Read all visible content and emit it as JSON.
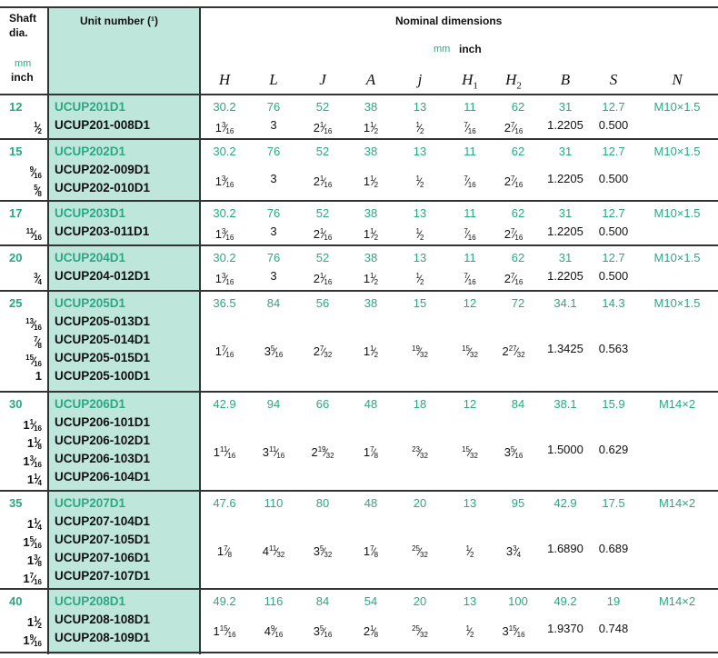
{
  "header": {
    "shaft_title": "Shaft dia.",
    "shaft_mm": "mm",
    "shaft_inch": "inch",
    "unit_title": "Unit number (¹)",
    "nominal_title": "Nominal dimensions",
    "nominal_mm": "mm",
    "nominal_inch": "inch",
    "columns": [
      "H",
      "L",
      "J",
      "A",
      "j",
      "H1",
      "H2",
      "B",
      "S",
      "N"
    ]
  },
  "colors": {
    "metric_green": "#2aa884",
    "unit_column": "#bfe6db"
  },
  "groups": [
    {
      "shaft_mm": "12",
      "shaft_inch": [
        "1/2"
      ],
      "units": [
        "UCUP201D1",
        "UCUP201-008D1"
      ],
      "mm": [
        "30.2",
        "76",
        "52",
        "38",
        "13",
        "11",
        "62",
        "31",
        "12.7",
        "M10×1.5"
      ],
      "inch": [
        "1 3/16",
        "3",
        "2 1/16",
        "1 1/2",
        "1/2",
        "7/16",
        "2 7/16",
        "1.2205",
        "0.500"
      ]
    },
    {
      "shaft_mm": "15",
      "shaft_inch": [
        "9/16",
        "5/8"
      ],
      "units": [
        "UCUP202D1",
        "UCUP202-009D1",
        "UCUP202-010D1"
      ],
      "mm": [
        "30.2",
        "76",
        "52",
        "38",
        "13",
        "11",
        "62",
        "31",
        "12.7",
        "M10×1.5"
      ],
      "inch": [
        "1 3/16",
        "3",
        "2 1/16",
        "1 1/2",
        "1/2",
        "7/16",
        "2 7/16",
        "1.2205",
        "0.500"
      ]
    },
    {
      "shaft_mm": "17",
      "shaft_inch": [
        "11/16"
      ],
      "units": [
        "UCUP203D1",
        "UCUP203-011D1"
      ],
      "mm": [
        "30.2",
        "76",
        "52",
        "38",
        "13",
        "11",
        "62",
        "31",
        "12.7",
        "M10×1.5"
      ],
      "inch": [
        "1 3/16",
        "3",
        "2 1/16",
        "1 1/2",
        "1/2",
        "7/16",
        "2 7/16",
        "1.2205",
        "0.500"
      ]
    },
    {
      "shaft_mm": "20",
      "shaft_inch": [
        "3/4"
      ],
      "units": [
        "UCUP204D1",
        "UCUP204-012D1"
      ],
      "mm": [
        "30.2",
        "76",
        "52",
        "38",
        "13",
        "11",
        "62",
        "31",
        "12.7",
        "M10×1.5"
      ],
      "inch": [
        "1 3/16",
        "3",
        "2 1/16",
        "1 1/2",
        "1/2",
        "7/16",
        "2 7/16",
        "1.2205",
        "0.500"
      ]
    },
    {
      "shaft_mm": "25",
      "shaft_inch": [
        "13/16",
        "7/8",
        "15/16",
        "1"
      ],
      "units": [
        "UCUP205D1",
        "UCUP205-013D1",
        "UCUP205-014D1",
        "UCUP205-015D1",
        "UCUP205-100D1"
      ],
      "mm": [
        "36.5",
        "84",
        "56",
        "38",
        "15",
        "12",
        "72",
        "34.1",
        "14.3",
        "M10×1.5"
      ],
      "inch": [
        "1 7/16",
        "3 5/16",
        "2 7/32",
        "1 1/2",
        "19/32",
        "15/32",
        "2 27/32",
        "1.3425",
        "0.563"
      ]
    },
    {
      "shaft_mm": "30",
      "shaft_inch": [
        "1 1/16",
        "1 1/8",
        "1 3/16",
        "1 1/4"
      ],
      "units": [
        "UCUP206D1",
        "UCUP206-101D1",
        "UCUP206-102D1",
        "UCUP206-103D1",
        "UCUP206-104D1"
      ],
      "mm": [
        "42.9",
        "94",
        "66",
        "48",
        "18",
        "12",
        "84",
        "38.1",
        "15.9",
        "M14×2"
      ],
      "inch": [
        "1 11/16",
        "3 11/16",
        "2 19/32",
        "1 7/8",
        "23/32",
        "15/32",
        "3 5/16",
        "1.5000",
        "0.629"
      ]
    },
    {
      "shaft_mm": "35",
      "shaft_inch": [
        "1 1/4",
        "1 5/16",
        "1 3/8",
        "1 7/16"
      ],
      "units": [
        "UCUP207D1",
        "UCUP207-104D1",
        "UCUP207-105D1",
        "UCUP207-106D1",
        "UCUP207-107D1"
      ],
      "mm": [
        "47.6",
        "110",
        "80",
        "48",
        "20",
        "13",
        "95",
        "42.9",
        "17.5",
        "M14×2"
      ],
      "inch": [
        "1 7/8",
        "4 11/32",
        "3 5/32",
        "1 7/8",
        "25/32",
        "1/2",
        "3 3/4",
        "1.6890",
        "0.689"
      ]
    },
    {
      "shaft_mm": "40",
      "shaft_inch": [
        "1 1/2",
        "1 9/16"
      ],
      "units": [
        "UCUP208D1",
        "UCUP208-108D1",
        "UCUP208-109D1"
      ],
      "mm": [
        "49.2",
        "116",
        "84",
        "54",
        "20",
        "13",
        "100",
        "49.2",
        "19",
        "M14×2"
      ],
      "inch": [
        "1 15/16",
        "4 9/16",
        "3 5/16",
        "2 1/8",
        "25/32",
        "1/2",
        "3 15/16",
        "1.9370",
        "0.748"
      ]
    }
  ]
}
